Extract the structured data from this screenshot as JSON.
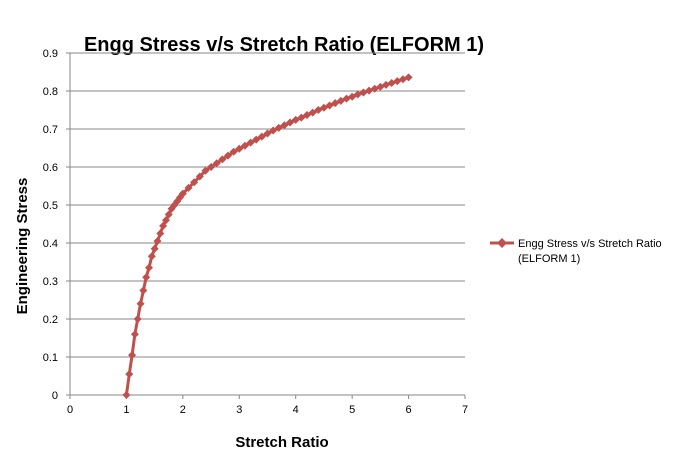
{
  "chart_data": {
    "type": "line",
    "title": "Engg Stress v/s Stretch Ratio (ELFORM 1)",
    "xlabel": "Stretch Ratio",
    "ylabel": "Engineering Stress",
    "xlim": [
      0,
      7
    ],
    "ylim": [
      0,
      0.9
    ],
    "x_ticks": [
      "0",
      "1",
      "2",
      "3",
      "4",
      "5",
      "6",
      "7"
    ],
    "y_ticks": [
      "0",
      "0.1",
      "0.2",
      "0.3",
      "0.4",
      "0.5",
      "0.6",
      "0.7",
      "0.8",
      "0.9"
    ],
    "grid": "horizontal",
    "legend_position": "right",
    "series": [
      {
        "name": "Engg Stress v/s Stretch Ratio (ELFORM 1)",
        "color": "#C0504D",
        "marker": "diamond",
        "x": [
          1.0,
          1.05,
          1.1,
          1.15,
          1.2,
          1.25,
          1.3,
          1.35,
          1.4,
          1.45,
          1.5,
          1.55,
          1.6,
          1.65,
          1.7,
          1.75,
          1.8,
          1.85,
          1.9,
          1.95,
          2.0,
          2.1,
          2.2,
          2.3,
          2.4,
          2.5,
          2.6,
          2.7,
          2.8,
          2.9,
          3.0,
          3.1,
          3.2,
          3.3,
          3.4,
          3.5,
          3.6,
          3.7,
          3.8,
          3.9,
          4.0,
          4.1,
          4.2,
          4.3,
          4.4,
          4.5,
          4.6,
          4.7,
          4.8,
          4.9,
          5.0,
          5.1,
          5.2,
          5.3,
          5.4,
          5.5,
          5.6,
          5.7,
          5.8,
          5.9,
          6.0
        ],
        "y": [
          0.0,
          0.055,
          0.105,
          0.16,
          0.2,
          0.24,
          0.275,
          0.31,
          0.335,
          0.365,
          0.385,
          0.405,
          0.425,
          0.445,
          0.46,
          0.475,
          0.49,
          0.5,
          0.51,
          0.52,
          0.53,
          0.545,
          0.56,
          0.575,
          0.59,
          0.6,
          0.61,
          0.62,
          0.63,
          0.64,
          0.648,
          0.656,
          0.664,
          0.672,
          0.68,
          0.688,
          0.696,
          0.703,
          0.71,
          0.717,
          0.724,
          0.73,
          0.737,
          0.743,
          0.75,
          0.756,
          0.762,
          0.768,
          0.774,
          0.78,
          0.785,
          0.791,
          0.796,
          0.801,
          0.806,
          0.811,
          0.816,
          0.821,
          0.826,
          0.831,
          0.836
        ]
      }
    ]
  },
  "legend": {
    "line1": "Engg Stress v/s Stretch Ratio",
    "line2": "(ELFORM 1)"
  }
}
